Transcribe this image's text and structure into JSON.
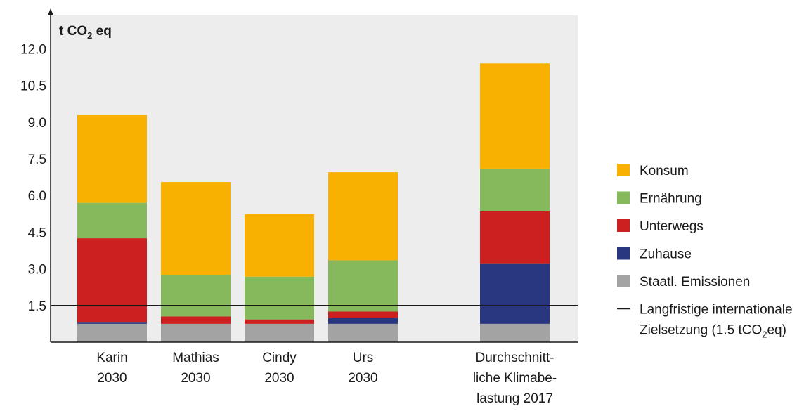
{
  "chart_data": {
    "type": "bar",
    "stacked": true,
    "ylabel": "t CO2 eq",
    "ylim": [
      0,
      13.5
    ],
    "yticks": [
      "12.0",
      "10.5",
      "9.0",
      "7.5",
      "6.0",
      "4.5",
      "3.0",
      "1.5"
    ],
    "grid": false,
    "categories": [
      [
        "Karin",
        "2030"
      ],
      [
        "Mathias",
        "2030"
      ],
      [
        "Cindy",
        "2030"
      ],
      [
        "Urs",
        "2030"
      ],
      [
        "Durchschnitt-",
        "liche Klimabe-",
        "lastung 2017"
      ]
    ],
    "series": [
      {
        "name": "Staatl. Emissionen",
        "color": "#a3a3a3",
        "values": [
          0.75,
          0.75,
          0.75,
          0.75,
          0.75
        ]
      },
      {
        "name": "Zuhause",
        "color": "#28377f",
        "values": [
          0.05,
          0.0,
          0.0,
          0.25,
          2.45
        ]
      },
      {
        "name": "Unterwegs",
        "color": "#cc1f1f",
        "values": [
          3.45,
          0.3,
          0.18,
          0.25,
          2.15
        ]
      },
      {
        "name": "Ernährung",
        "color": "#86b95c",
        "values": [
          1.45,
          1.7,
          1.75,
          2.1,
          1.75
        ]
      },
      {
        "name": "Konsum",
        "color": "#f8b100",
        "values": [
          3.6,
          3.8,
          2.55,
          3.6,
          4.3
        ]
      }
    ],
    "reference_line": {
      "value": 1.5,
      "label": [
        "Langfristige internationale",
        "Zielsetzung (1.5 tCO",
        "2",
        "eq)"
      ]
    },
    "legend_position": "right",
    "legend_order": [
      "Konsum",
      "Ernährung",
      "Unterwegs",
      "Zuhause",
      "Staatl. Emissionen"
    ],
    "background": "#ededed"
  }
}
